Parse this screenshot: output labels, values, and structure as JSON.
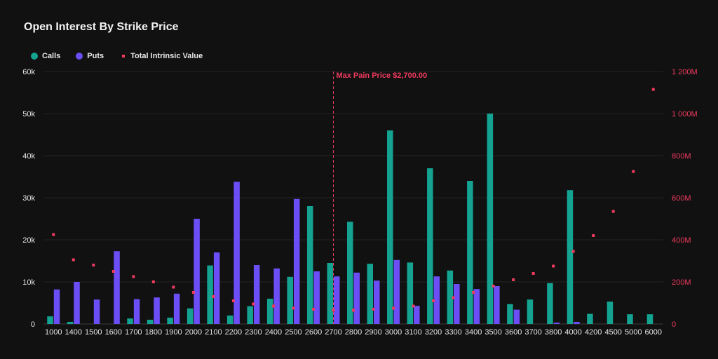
{
  "title": "Open Interest By Strike Price",
  "legend": {
    "calls": "Calls",
    "puts": "Puts",
    "intrinsic": "Total Intrinsic Value"
  },
  "colors": {
    "calls": "#14a391",
    "puts": "#6b4ef5",
    "intrinsic": "#f03a5f",
    "background": "#111111",
    "grid": "#222222",
    "text": "#e6e6e6"
  },
  "chart_data": {
    "type": "bar",
    "title": "Open Interest By Strike Price",
    "categories": [
      "1000",
      "1400",
      "1500",
      "1600",
      "1700",
      "1800",
      "1900",
      "2000",
      "2100",
      "2200",
      "2300",
      "2400",
      "2500",
      "2600",
      "2700",
      "2800",
      "2900",
      "3000",
      "3100",
      "3200",
      "3300",
      "3400",
      "3500",
      "3600",
      "3700",
      "3800",
      "4000",
      "4200",
      "4500",
      "5000",
      "6000"
    ],
    "series": [
      {
        "name": "Calls",
        "type": "bar",
        "axis": "left",
        "values": [
          1800,
          500,
          0,
          0,
          1300,
          1000,
          1500,
          3700,
          13900,
          2000,
          4200,
          6000,
          11200,
          28000,
          14500,
          24300,
          14300,
          46000,
          14600,
          37000,
          12700,
          34000,
          50000,
          4700,
          5800,
          9700,
          31800,
          2400,
          5300,
          2300,
          2300
        ]
      },
      {
        "name": "Puts",
        "type": "bar",
        "axis": "left",
        "values": [
          8200,
          10000,
          5800,
          17300,
          5900,
          6300,
          7200,
          25000,
          17000,
          33800,
          14000,
          13200,
          29700,
          12500,
          11300,
          12200,
          10300,
          15200,
          4300,
          11300,
          9500,
          8300,
          9000,
          3400,
          0,
          300,
          500,
          0,
          0,
          0,
          0
        ]
      },
      {
        "name": "Total Intrinsic Value",
        "type": "scatter",
        "axis": "right",
        "values": [
          425,
          305,
          280,
          250,
          225,
          200,
          175,
          150,
          130,
          110,
          95,
          85,
          75,
          70,
          65,
          65,
          70,
          75,
          85,
          110,
          125,
          150,
          180,
          210,
          240,
          275,
          345,
          420,
          535,
          725,
          1115
        ]
      }
    ],
    "ylim": [
      0,
      60000
    ],
    "y_ticks": [
      "0",
      "10k",
      "20k",
      "30k",
      "40k",
      "50k",
      "60k"
    ],
    "y2lim": [
      0,
      1200
    ],
    "y2_ticks": [
      "0",
      "200M",
      "400M",
      "600M",
      "800M",
      "1 000M",
      "1 200M"
    ],
    "annotation": {
      "category": "2700",
      "label": "Max Pain Price $2,700.00"
    },
    "legend_position": "top-left",
    "grid": true
  }
}
